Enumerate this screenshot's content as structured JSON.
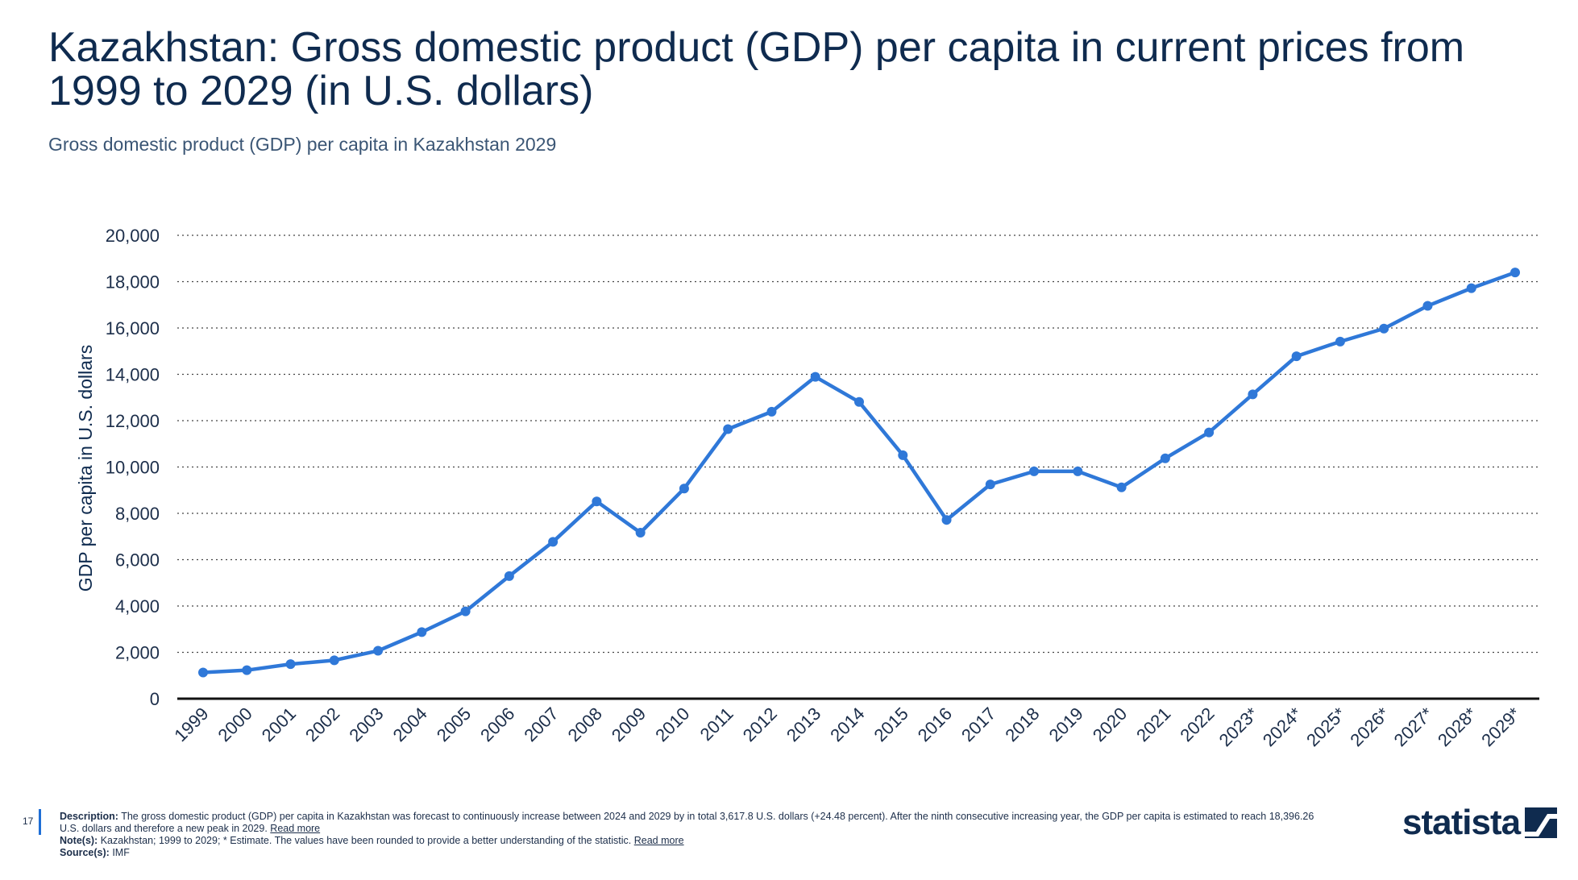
{
  "header": {
    "title": "Kazakhstan: Gross domestic product (GDP) per capita in current prices from 1999 to 2029 (in U.S. dollars)",
    "subtitle": "Gross domestic product (GDP) per capita in Kazakhstan 2029"
  },
  "chart_data": {
    "type": "line",
    "title": "Kazakhstan: Gross domestic product (GDP) per capita in current prices from 1999 to 2029 (in U.S. dollars)",
    "xlabel": "",
    "ylabel": "GDP per capita in U.S. dollars",
    "ylim": [
      0,
      20000
    ],
    "yticks": [
      0,
      2000,
      4000,
      6000,
      8000,
      10000,
      12000,
      14000,
      16000,
      18000,
      20000
    ],
    "ytick_labels": [
      "0",
      "2,000",
      "4,000",
      "6,000",
      "8,000",
      "10,000",
      "12,000",
      "14,000",
      "16,000",
      "18,000",
      "20,000"
    ],
    "grid": true,
    "categories": [
      "1999",
      "2000",
      "2001",
      "2002",
      "2003",
      "2004",
      "2005",
      "2006",
      "2007",
      "2008",
      "2009",
      "2010",
      "2011",
      "2012",
      "2013",
      "2014",
      "2015",
      "2016",
      "2017",
      "2018",
      "2019",
      "2020",
      "2021",
      "2022",
      "2023*",
      "2024*",
      "2025*",
      "2026*",
      "2027*",
      "2028*",
      "2029*"
    ],
    "series": [
      {
        "color": "#2f78d8",
        "values": [
          1130,
          1229,
          1491,
          1658,
          2068,
          2874,
          3771,
          5292,
          6771,
          8514,
          7165,
          9071,
          11634,
          12387,
          13891,
          12807,
          10510,
          7715,
          9248,
          9812,
          9813,
          9122,
          10374,
          11492,
          13136,
          14779,
          15414,
          15973,
          16955,
          17717,
          18396
        ]
      }
    ]
  },
  "footer": {
    "page_number": "17",
    "description_label": "Description:",
    "description_text": "The gross domestic product (GDP) per capita in Kazakhstan was forecast to continuously increase between 2024 and 2029 by in total 3,617.8 U.S. dollars (+24.48 percent). After the ninth consecutive increasing year, the GDP per capita is estimated to reach 18,396.26 U.S. dollars and therefore a new peak in 2029.",
    "read_more_1": "Read more",
    "notes_label": "Note(s):",
    "notes_text": "Kazakhstan; 1999 to 2029; * Estimate. The values have been rounded to provide a better understanding of the statistic.",
    "read_more_2": "Read more",
    "source_label": "Source(s):",
    "source_text": "IMF"
  },
  "brand": {
    "logo_text": "statista"
  }
}
